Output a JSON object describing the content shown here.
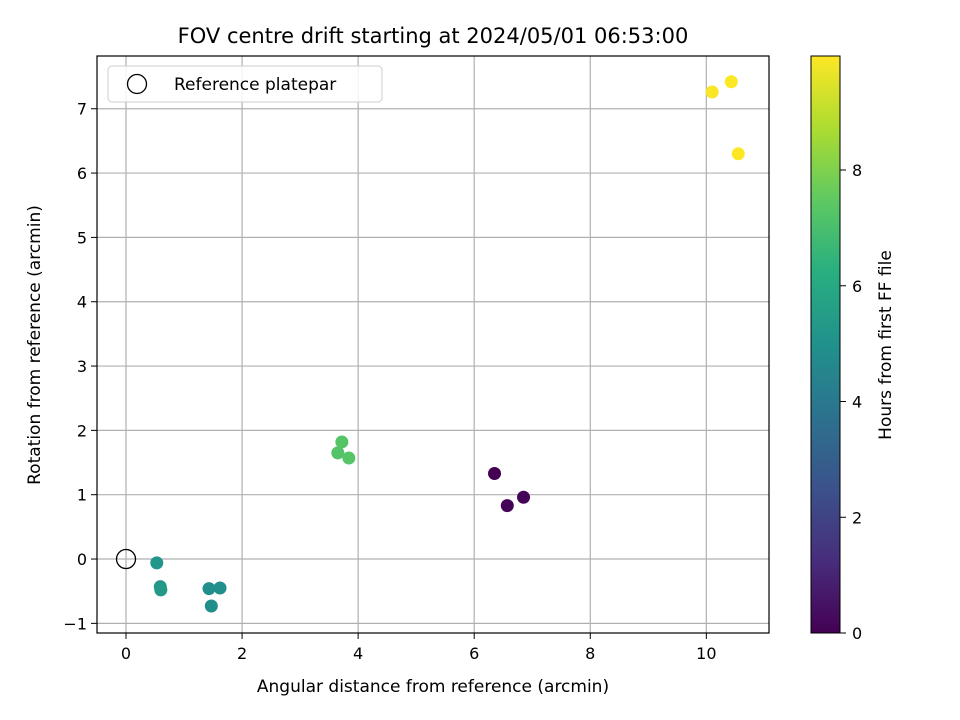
{
  "chart_data": {
    "type": "scatter",
    "title": "FOV centre drift starting at 2024/05/01 06:53:00",
    "xlabel": "Angular distance from reference (arcmin)",
    "ylabel": "Rotation from reference (arcmin)",
    "xlim": [
      -0.5,
      11.08
    ],
    "ylim": [
      -1.15,
      7.82
    ],
    "xticks": [
      0,
      2,
      4,
      6,
      8,
      10
    ],
    "yticks": [
      -1,
      0,
      1,
      2,
      3,
      4,
      5,
      6,
      7
    ],
    "grid": true,
    "legend": {
      "placement": "top-left",
      "entries": [
        {
          "label": "Reference platepar",
          "marker": "open-circle",
          "color": "#000000"
        }
      ]
    },
    "reference_point": {
      "x": 0,
      "y": 0
    },
    "series": [
      {
        "color_by": "hours",
        "points": [
          {
            "x": 6.35,
            "y": 1.33,
            "hours": 0.0
          },
          {
            "x": 6.57,
            "y": 0.83,
            "hours": 0.05
          },
          {
            "x": 6.85,
            "y": 0.96,
            "hours": 0.1
          },
          {
            "x": 0.53,
            "y": -0.06,
            "hours": 5.2
          },
          {
            "x": 0.59,
            "y": -0.43,
            "hours": 5.3
          },
          {
            "x": 0.6,
            "y": -0.48,
            "hours": 5.35
          },
          {
            "x": 1.43,
            "y": -0.46,
            "hours": 4.9
          },
          {
            "x": 1.62,
            "y": -0.45,
            "hours": 4.95
          },
          {
            "x": 1.47,
            "y": -0.73,
            "hours": 4.85
          },
          {
            "x": 3.65,
            "y": 1.65,
            "hours": 7.2
          },
          {
            "x": 3.72,
            "y": 1.82,
            "hours": 7.25
          },
          {
            "x": 3.84,
            "y": 1.57,
            "hours": 7.3
          },
          {
            "x": 10.1,
            "y": 7.26,
            "hours": 9.9
          },
          {
            "x": 10.43,
            "y": 7.42,
            "hours": 9.95
          },
          {
            "x": 10.55,
            "y": 6.3,
            "hours": 9.97
          }
        ]
      }
    ],
    "colorbar": {
      "label": "Hours from first FF file",
      "colormap": "viridis",
      "range": [
        0,
        9.97
      ],
      "ticks": [
        0,
        2,
        4,
        6,
        8
      ]
    }
  }
}
